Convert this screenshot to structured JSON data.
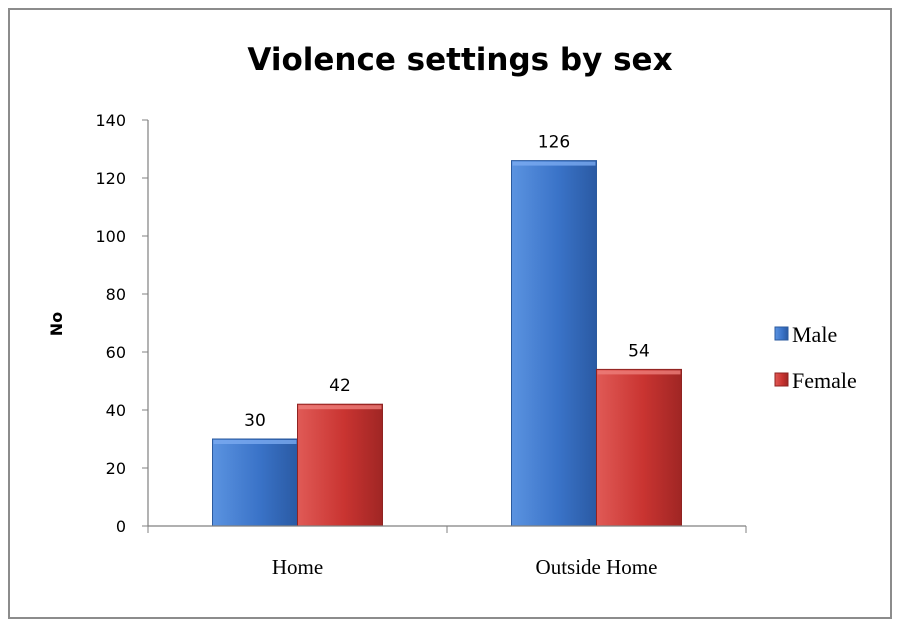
{
  "chart_data": {
    "type": "bar",
    "title": "Violence settings by sex",
    "ylabel": "No",
    "xlabel": "",
    "categories": [
      "Home",
      "Outside Home"
    ],
    "series": [
      {
        "name": "Male",
        "values": [
          30,
          126
        ],
        "color": "#3a73c8"
      },
      {
        "name": "Female",
        "values": [
          42,
          54
        ],
        "color": "#c93431"
      }
    ],
    "ylim": [
      0,
      140
    ],
    "yticks": [
      0,
      20,
      40,
      60,
      80,
      100,
      120,
      140
    ],
    "grid": false,
    "legend_position": "right",
    "data_labels": true
  }
}
